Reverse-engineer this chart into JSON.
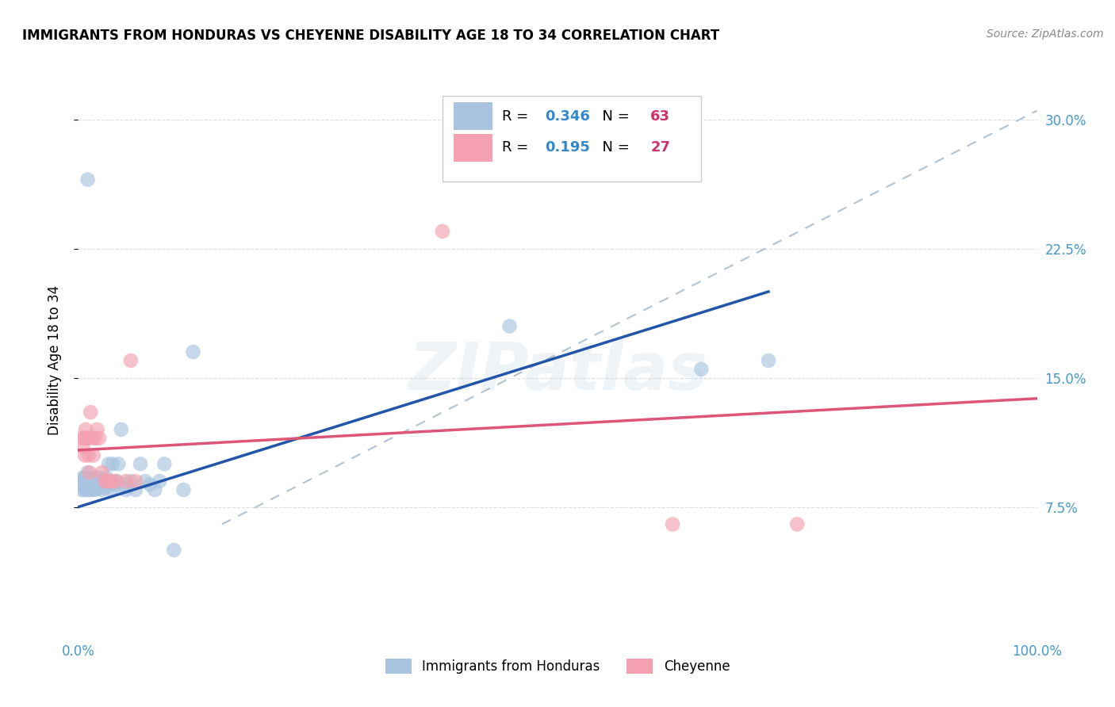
{
  "title": "IMMIGRANTS FROM HONDURAS VS CHEYENNE DISABILITY AGE 18 TO 34 CORRELATION CHART",
  "source": "Source: ZipAtlas.com",
  "ylabel": "Disability Age 18 to 34",
  "xlim": [
    0.0,
    1.0
  ],
  "ylim": [
    0.0,
    0.32
  ],
  "y_tick_vals": [
    0.075,
    0.15,
    0.225,
    0.3
  ],
  "x_tick_vals": [
    0.0,
    0.25,
    0.5,
    0.75,
    1.0
  ],
  "background_color": "#ffffff",
  "grid_color": "#dddddd",
  "legend_labels": [
    "Immigrants from Honduras",
    "Cheyenne"
  ],
  "blue_R": "0.346",
  "blue_N": "63",
  "pink_R": "0.195",
  "pink_N": "27",
  "blue_color": "#a8c4e0",
  "pink_color": "#f4a0b0",
  "blue_line_color": "#2255aa",
  "pink_line_color": "#dd5577",
  "dashed_line_color": "#aabccc",
  "blue_scatter_x": [
    0.003,
    0.004,
    0.005,
    0.005,
    0.006,
    0.006,
    0.007,
    0.007,
    0.008,
    0.008,
    0.009,
    0.009,
    0.01,
    0.01,
    0.01,
    0.011,
    0.012,
    0.012,
    0.013,
    0.014,
    0.015,
    0.015,
    0.016,
    0.017,
    0.018,
    0.018,
    0.019,
    0.02,
    0.021,
    0.022,
    0.023,
    0.024,
    0.025,
    0.026,
    0.027,
    0.028,
    0.029,
    0.03,
    0.032,
    0.033,
    0.035,
    0.036,
    0.038,
    0.04,
    0.042,
    0.045,
    0.048,
    0.05,
    0.055,
    0.06,
    0.065,
    0.07,
    0.075,
    0.08,
    0.085,
    0.09,
    0.1,
    0.11,
    0.12,
    0.45,
    0.65,
    0.72,
    0.01
  ],
  "blue_scatter_y": [
    0.09,
    0.085,
    0.088,
    0.092,
    0.087,
    0.09,
    0.085,
    0.092,
    0.088,
    0.09,
    0.086,
    0.091,
    0.085,
    0.09,
    0.095,
    0.088,
    0.085,
    0.092,
    0.09,
    0.088,
    0.085,
    0.091,
    0.088,
    0.086,
    0.085,
    0.09,
    0.092,
    0.088,
    0.086,
    0.09,
    0.092,
    0.088,
    0.085,
    0.09,
    0.088,
    0.086,
    0.09,
    0.092,
    0.1,
    0.088,
    0.085,
    0.1,
    0.088,
    0.09,
    0.1,
    0.12,
    0.088,
    0.085,
    0.09,
    0.085,
    0.1,
    0.09,
    0.088,
    0.085,
    0.09,
    0.1,
    0.05,
    0.085,
    0.165,
    0.18,
    0.155,
    0.16,
    0.265
  ],
  "pink_scatter_x": [
    0.004,
    0.005,
    0.006,
    0.007,
    0.008,
    0.009,
    0.01,
    0.011,
    0.012,
    0.013,
    0.015,
    0.016,
    0.018,
    0.02,
    0.022,
    0.025,
    0.028,
    0.03,
    0.033,
    0.035,
    0.04,
    0.05,
    0.055,
    0.06,
    0.38,
    0.62,
    0.75
  ],
  "pink_scatter_y": [
    0.115,
    0.11,
    0.115,
    0.105,
    0.12,
    0.115,
    0.115,
    0.105,
    0.095,
    0.13,
    0.115,
    0.105,
    0.115,
    0.12,
    0.115,
    0.095,
    0.09,
    0.09,
    0.09,
    0.09,
    0.09,
    0.09,
    0.16,
    0.09,
    0.235,
    0.065,
    0.065
  ],
  "blue_line_x0": 0.0,
  "blue_line_y0": 0.075,
  "blue_line_x1": 0.72,
  "blue_line_y1": 0.2,
  "pink_line_x0": 0.0,
  "pink_line_y0": 0.108,
  "pink_line_x1": 1.0,
  "pink_line_y1": 0.138,
  "dash_line_x0": 0.15,
  "dash_line_y0": 0.065,
  "dash_line_x1": 1.0,
  "dash_line_y1": 0.305
}
